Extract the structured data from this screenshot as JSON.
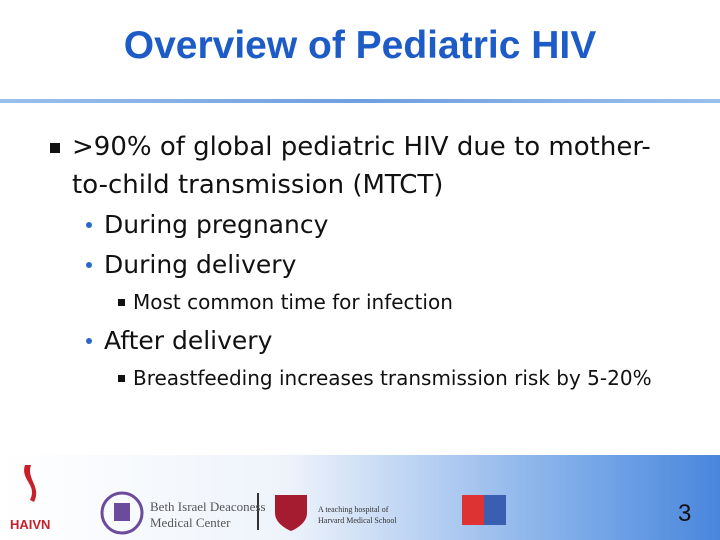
{
  "header": {
    "title": "Overview of Pediatric HIV"
  },
  "body": {
    "items": [
      {
        "level": 1,
        "text": ">90% of global pediatric HIV due to mother-to-child transmission (MTCT)"
      },
      {
        "level": 2,
        "text": "During pregnancy"
      },
      {
        "level": 2,
        "text": "During delivery"
      },
      {
        "level": 3,
        "text": "Most common time for infection"
      },
      {
        "level": 2,
        "text": "After delivery"
      },
      {
        "level": 3,
        "text": "Breastfeeding increases transmission risk by 5-20%"
      }
    ]
  },
  "footer": {
    "logo1": "HAIVN",
    "logo2_line1": "Beth Israel Deaconess",
    "logo2_line2": "Medical Center",
    "logo3_line1": "A teaching hospital of",
    "logo3_line2": "Harvard Medical School",
    "slide_number": "3"
  }
}
